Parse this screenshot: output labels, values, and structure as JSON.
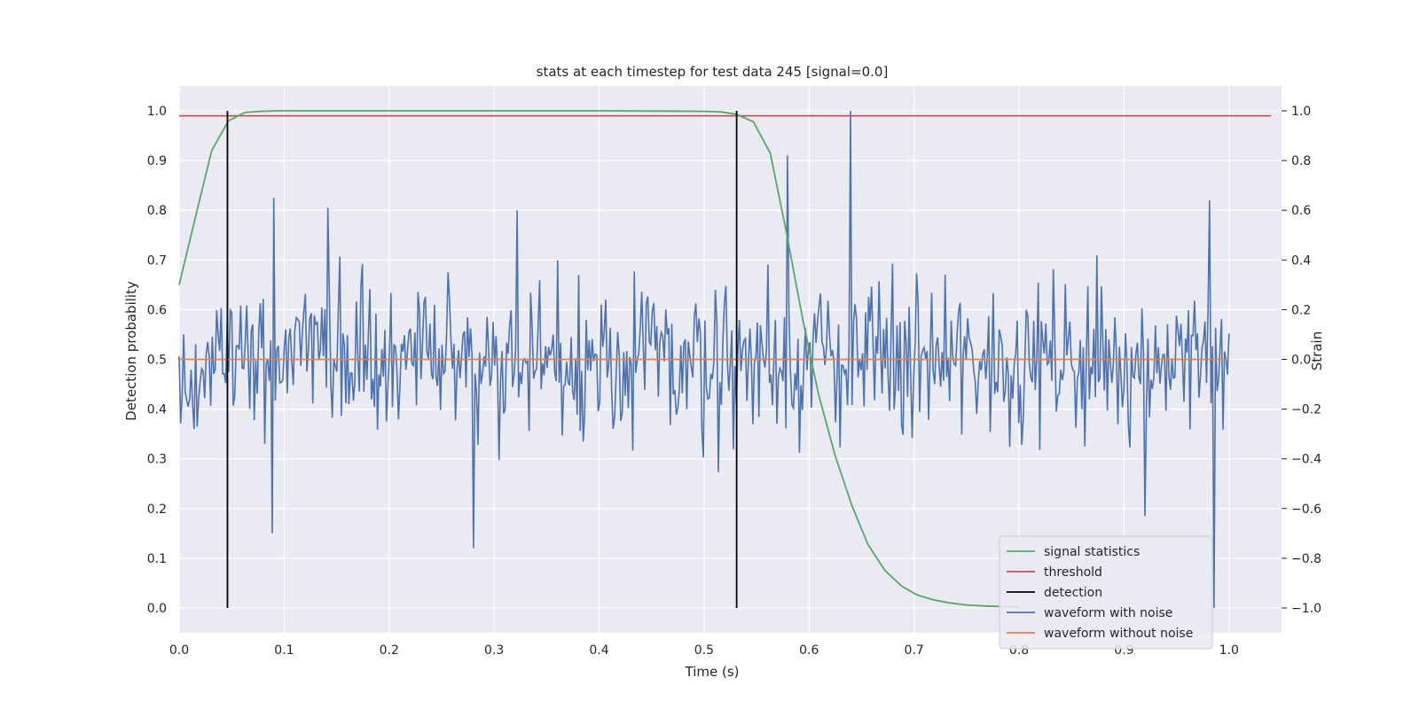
{
  "chart_data": {
    "type": "line",
    "title": "stats at each timestep for test data 245 [signal=0.0]",
    "xlabel": "Time (s)",
    "ylabel": "Detection probability",
    "ylabel_right": "Strain",
    "xlim": [
      0.0,
      1.05
    ],
    "ylim": [
      -0.05,
      1.05
    ],
    "ylim_right": [
      -1.1,
      1.1
    ],
    "x_ticks": [
      "0.0",
      "0.1",
      "0.2",
      "0.3",
      "0.4",
      "0.5",
      "0.6",
      "0.7",
      "0.8",
      "0.9",
      "1.0"
    ],
    "y_ticks": [
      "0.0",
      "0.1",
      "0.2",
      "0.3",
      "0.4",
      "0.5",
      "0.6",
      "0.7",
      "0.8",
      "0.9",
      "1.0"
    ],
    "y_right_ticks": [
      "−1.0",
      "−0.8",
      "−0.6",
      "−0.4",
      "−0.2",
      "0.0",
      "0.2",
      "0.4",
      "0.6",
      "0.8",
      "1.0"
    ],
    "grid": true,
    "background": "#eaeaf2",
    "legend_placement": "lower-right",
    "series": [
      {
        "name": "signal statistics",
        "color": "#55a868",
        "axis": "left",
        "x": [
          0.0,
          0.016,
          0.031,
          0.047,
          0.063,
          0.078,
          0.094,
          0.2,
          0.3,
          0.4,
          0.5,
          0.516,
          0.531,
          0.547,
          0.563,
          0.578,
          0.594,
          0.609,
          0.625,
          0.641,
          0.656,
          0.672,
          0.688,
          0.703,
          0.719,
          0.734,
          0.75,
          0.766,
          0.781,
          0.797,
          0.8
        ],
        "y": [
          0.65,
          0.79,
          0.92,
          0.98,
          0.997,
          0.999,
          1.0,
          1.0,
          1.0,
          1.0,
          0.999,
          0.998,
          0.993,
          0.978,
          0.915,
          0.76,
          0.58,
          0.43,
          0.305,
          0.205,
          0.128,
          0.076,
          0.044,
          0.026,
          0.016,
          0.01,
          0.006,
          0.004,
          0.003,
          0.002,
          0.0
        ]
      },
      {
        "name": "threshold",
        "color": "#c44e52",
        "axis": "left",
        "x": [
          0.0,
          1.04
        ],
        "y": [
          0.99,
          0.99
        ]
      },
      {
        "name": "detection",
        "color": "#000000",
        "axis": "left",
        "vlines": [
          0.046,
          0.531
        ],
        "y": [
          0.0,
          1.0
        ]
      },
      {
        "name": "waveform with noise",
        "color": "#4c72b0",
        "axis": "right",
        "x_range": [
          0.0,
          1.0
        ],
        "points": 700,
        "y_amplitude": 0.25,
        "y_notable": [
          {
            "x": 0.09,
            "y": 0.65
          },
          {
            "x": 0.088,
            "y": -0.7
          },
          {
            "x": 0.142,
            "y": 0.61
          },
          {
            "x": 0.281,
            "y": -0.76
          },
          {
            "x": 0.322,
            "y": 0.6
          },
          {
            "x": 0.58,
            "y": 0.82
          },
          {
            "x": 0.64,
            "y": 1.0
          },
          {
            "x": 0.92,
            "y": -0.63
          },
          {
            "x": 0.982,
            "y": 0.64
          },
          {
            "x": 0.986,
            "y": -1.0
          }
        ]
      },
      {
        "name": "waveform without noise",
        "color": "#dd8452",
        "axis": "right",
        "x": [
          0.0,
          1.0
        ],
        "y": [
          0.0,
          0.0
        ]
      }
    ]
  }
}
